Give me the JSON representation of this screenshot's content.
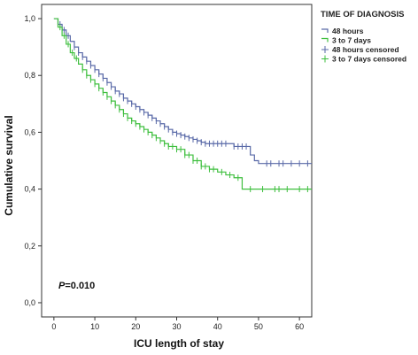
{
  "chart_data": {
    "type": "line",
    "step": true,
    "xlabel": "ICU length of stay",
    "ylabel": "Cumulative survival",
    "xlim": [
      -3,
      63
    ],
    "ylim": [
      -0.05,
      1.05
    ],
    "xticks": [
      0,
      10,
      20,
      30,
      40,
      50,
      60
    ],
    "xtick_labels": [
      "0",
      "10",
      "20",
      "30",
      "40",
      "50",
      "60"
    ],
    "yticks": [
      0.0,
      0.2,
      0.4,
      0.6,
      0.8,
      1.0
    ],
    "ytick_labels": [
      "0,0",
      "0,2",
      "0,4",
      "0,6",
      "0,8",
      "1,0"
    ],
    "grid": false,
    "legend": {
      "title": "TIME OF DIAGNOSIS",
      "position": "top-right",
      "entries": [
        {
          "label": "48 hours",
          "kind": "line",
          "series": 0
        },
        {
          "label": "3 to 7 days",
          "kind": "line",
          "series": 1
        },
        {
          "label": "48 hours censored",
          "kind": "censor",
          "series": 0
        },
        {
          "label": "3 to 7 days censored",
          "kind": "censor",
          "series": 1
        }
      ]
    },
    "annotation": {
      "prefix": "P",
      "text": "=0.010"
    },
    "series": [
      {
        "name": "48 hours",
        "color": "#5a6aa8",
        "x": [
          0,
          1,
          2,
          3,
          4,
          5,
          6,
          7,
          8,
          9,
          10,
          11,
          12,
          13,
          14,
          15,
          16,
          17,
          18,
          19,
          20,
          21,
          22,
          23,
          24,
          25,
          26,
          27,
          28,
          29,
          30,
          31,
          32,
          33,
          34,
          35,
          36,
          37,
          38,
          40,
          42,
          44,
          46,
          48,
          49,
          50,
          63
        ],
        "y": [
          1.0,
          0.98,
          0.96,
          0.94,
          0.92,
          0.9,
          0.88,
          0.865,
          0.85,
          0.835,
          0.82,
          0.805,
          0.79,
          0.775,
          0.76,
          0.745,
          0.735,
          0.72,
          0.71,
          0.7,
          0.69,
          0.68,
          0.67,
          0.66,
          0.65,
          0.64,
          0.63,
          0.62,
          0.61,
          0.6,
          0.595,
          0.59,
          0.585,
          0.58,
          0.575,
          0.57,
          0.565,
          0.56,
          0.56,
          0.56,
          0.56,
          0.55,
          0.55,
          0.52,
          0.5,
          0.49,
          0.49
        ],
        "censored_x": [
          1.5,
          2.5,
          3.5,
          5,
          6,
          7,
          8,
          9,
          10,
          11,
          12,
          13,
          14,
          15,
          16,
          17,
          18,
          19,
          20,
          21,
          22,
          23,
          24,
          25,
          26,
          27,
          28,
          29,
          30,
          31,
          32,
          33,
          34,
          35,
          36,
          37,
          38,
          39,
          40,
          41,
          42,
          44,
          45,
          46,
          47,
          52,
          53,
          55,
          56,
          58,
          60,
          62
        ]
      },
      {
        "name": "3 to 7 days",
        "color": "#3fbf3f",
        "x": [
          0,
          1,
          2,
          3,
          4,
          5,
          6,
          7,
          8,
          9,
          10,
          11,
          12,
          13,
          14,
          15,
          16,
          17,
          18,
          19,
          20,
          21,
          22,
          23,
          24,
          25,
          26,
          27,
          28,
          30,
          32,
          34,
          36,
          38,
          40,
          42,
          44,
          46,
          63
        ],
        "y": [
          1.0,
          0.97,
          0.94,
          0.91,
          0.88,
          0.86,
          0.84,
          0.82,
          0.8,
          0.785,
          0.77,
          0.755,
          0.74,
          0.725,
          0.71,
          0.695,
          0.68,
          0.665,
          0.65,
          0.64,
          0.63,
          0.62,
          0.61,
          0.6,
          0.59,
          0.58,
          0.57,
          0.56,
          0.55,
          0.54,
          0.52,
          0.5,
          0.48,
          0.47,
          0.46,
          0.45,
          0.44,
          0.4,
          0.4
        ],
        "censored_x": [
          1.5,
          2.5,
          3.5,
          4.5,
          5.5,
          7,
          8,
          9,
          10,
          11,
          12,
          13,
          14,
          15,
          16,
          17,
          18,
          19,
          20,
          21,
          22,
          23,
          24,
          25,
          26,
          27,
          28,
          29,
          30,
          31,
          32,
          33,
          34,
          35,
          36,
          37,
          38,
          39,
          41,
          43,
          45,
          48,
          51,
          54,
          55,
          57,
          60,
          62
        ]
      }
    ]
  }
}
